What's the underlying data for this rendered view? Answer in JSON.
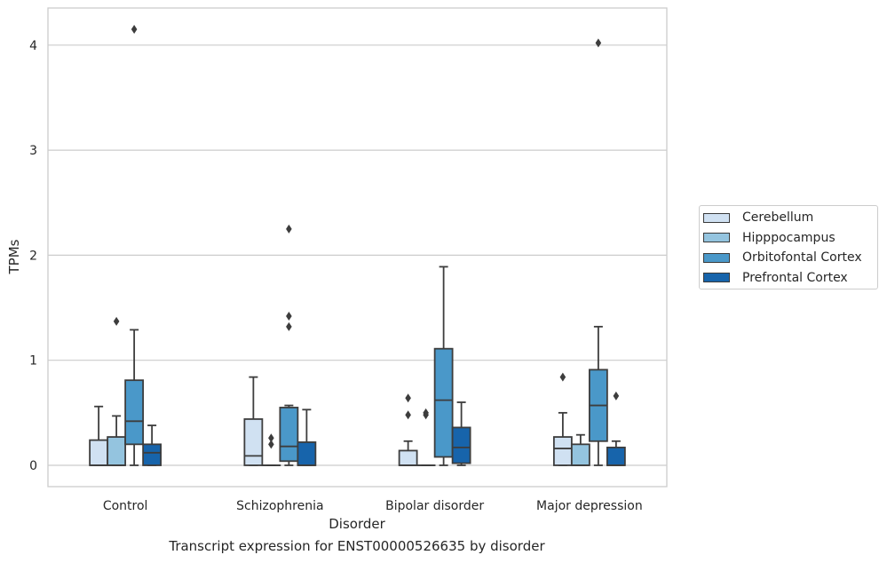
{
  "chart_data": {
    "type": "box",
    "title": "",
    "caption": "Transcript expression for ENST00000526635 by disorder",
    "xlabel": "Disorder",
    "ylabel": "TPMs",
    "categories": [
      "Control",
      "Schizophrenia",
      "Bipolar disorder",
      "Major depression"
    ],
    "ylim": [
      -0.2,
      4.35
    ],
    "yticks": [
      0,
      1,
      2,
      3,
      4
    ],
    "grid": "horizontal",
    "legend_position": "right",
    "series": [
      {
        "name": "Cerebellum",
        "color": "#d0e1f2",
        "boxes": [
          {
            "min": 0.0,
            "q1": 0.0,
            "median": 0.0,
            "q3": 0.24,
            "max": 0.56,
            "outliers": []
          },
          {
            "min": 0.0,
            "q1": 0.0,
            "median": 0.09,
            "q3": 0.44,
            "max": 0.84,
            "outliers": []
          },
          {
            "min": 0.0,
            "q1": 0.0,
            "median": 0.0,
            "q3": 0.14,
            "max": 0.23,
            "outliers": [
              0.48,
              0.64
            ]
          },
          {
            "min": 0.0,
            "q1": 0.0,
            "median": 0.16,
            "q3": 0.27,
            "max": 0.5,
            "outliers": [
              0.84
            ]
          }
        ]
      },
      {
        "name": "Hipppocampus",
        "color": "#94c4df",
        "boxes": [
          {
            "min": 0.0,
            "q1": 0.0,
            "median": 0.0,
            "q3": 0.27,
            "max": 0.47,
            "outliers": [
              1.37
            ]
          },
          {
            "min": 0.0,
            "q1": 0.0,
            "median": 0.0,
            "q3": 0.0,
            "max": 0.0,
            "outliers": [
              0.2,
              0.26
            ]
          },
          {
            "min": 0.0,
            "q1": 0.0,
            "median": 0.0,
            "q3": 0.0,
            "max": 0.0,
            "outliers": [
              0.48,
              0.5
            ]
          },
          {
            "min": 0.0,
            "q1": 0.0,
            "median": 0.0,
            "q3": 0.2,
            "max": 0.29,
            "outliers": []
          }
        ]
      },
      {
        "name": "Orbitofontal Cortex",
        "color": "#4a98c9",
        "boxes": [
          {
            "min": 0.0,
            "q1": 0.2,
            "median": 0.42,
            "q3": 0.81,
            "max": 1.29,
            "outliers": [
              4.15
            ]
          },
          {
            "min": 0.0,
            "q1": 0.04,
            "median": 0.18,
            "q3": 0.55,
            "max": 0.57,
            "outliers": [
              1.32,
              1.42,
              2.25
            ]
          },
          {
            "min": 0.0,
            "q1": 0.08,
            "median": 0.62,
            "q3": 1.11,
            "max": 1.89,
            "outliers": []
          },
          {
            "min": 0.0,
            "q1": 0.23,
            "median": 0.57,
            "q3": 0.91,
            "max": 1.32,
            "outliers": [
              4.02
            ]
          }
        ]
      },
      {
        "name": "Prefrontal Cortex",
        "color": "#1764ab",
        "boxes": [
          {
            "min": 0.0,
            "q1": 0.0,
            "median": 0.12,
            "q3": 0.2,
            "max": 0.38,
            "outliers": []
          },
          {
            "min": 0.0,
            "q1": 0.0,
            "median": 0.0,
            "q3": 0.22,
            "max": 0.53,
            "outliers": []
          },
          {
            "min": 0.0,
            "q1": 0.02,
            "median": 0.17,
            "q3": 0.36,
            "max": 0.6,
            "outliers": []
          },
          {
            "min": 0.0,
            "q1": 0.0,
            "median": 0.0,
            "q3": 0.17,
            "max": 0.23,
            "outliers": [
              0.66
            ]
          }
        ]
      }
    ]
  },
  "colors": {
    "grid": "#cccccc",
    "frame": "#cccccc",
    "box_edge": "#3d3d3d",
    "outlier": "#3d3d3d"
  }
}
